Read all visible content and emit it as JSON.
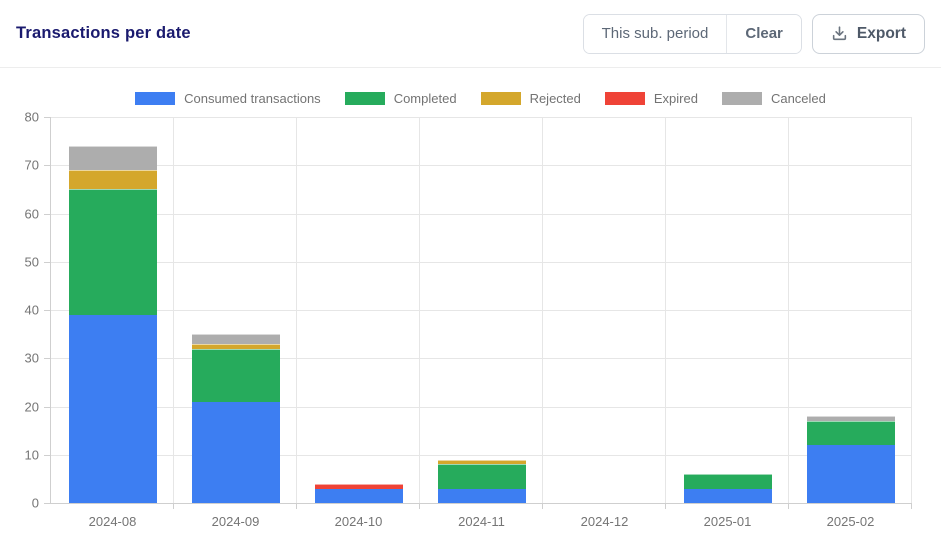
{
  "header": {
    "title": "Transactions per date",
    "period_button": "This sub. period",
    "clear_button": "Clear",
    "export_button": "Export"
  },
  "chart_data": {
    "type": "bar",
    "stacked": true,
    "title": "Transactions per date",
    "categories": [
      "2024-08",
      "2024-09",
      "2024-10",
      "2024-11",
      "2024-12",
      "2025-01",
      "2025-02"
    ],
    "series": [
      {
        "name": "Consumed transactions",
        "color": "#3D7EF2",
        "values": [
          39,
          21,
          3,
          3,
          0,
          3,
          12
        ]
      },
      {
        "name": "Completed",
        "color": "#26AB5C",
        "values": [
          26,
          11,
          0,
          5,
          0,
          3,
          5
        ]
      },
      {
        "name": "Rejected",
        "color": "#D4A72C",
        "values": [
          4,
          1,
          0,
          1,
          0,
          0,
          0
        ]
      },
      {
        "name": "Expired",
        "color": "#EF4337",
        "values": [
          0,
          0,
          1,
          0,
          0,
          0,
          0
        ]
      },
      {
        "name": "Canceled",
        "color": "#ADADAD",
        "values": [
          5,
          2,
          0,
          0,
          0,
          0,
          1
        ]
      }
    ],
    "totals": [
      74,
      35,
      4,
      9,
      0,
      6,
      18
    ],
    "xlabel": "",
    "ylabel": "",
    "ylim": [
      0,
      80
    ],
    "ytick_step": 10,
    "grid": true,
    "legend_position": "top"
  },
  "style_colors": {
    "title_text": "#1a1a6e",
    "axis_text": "#757575",
    "legend_text": "#737373",
    "gridline": "#e6e6e6",
    "axis_line": "#cfcfcf"
  }
}
